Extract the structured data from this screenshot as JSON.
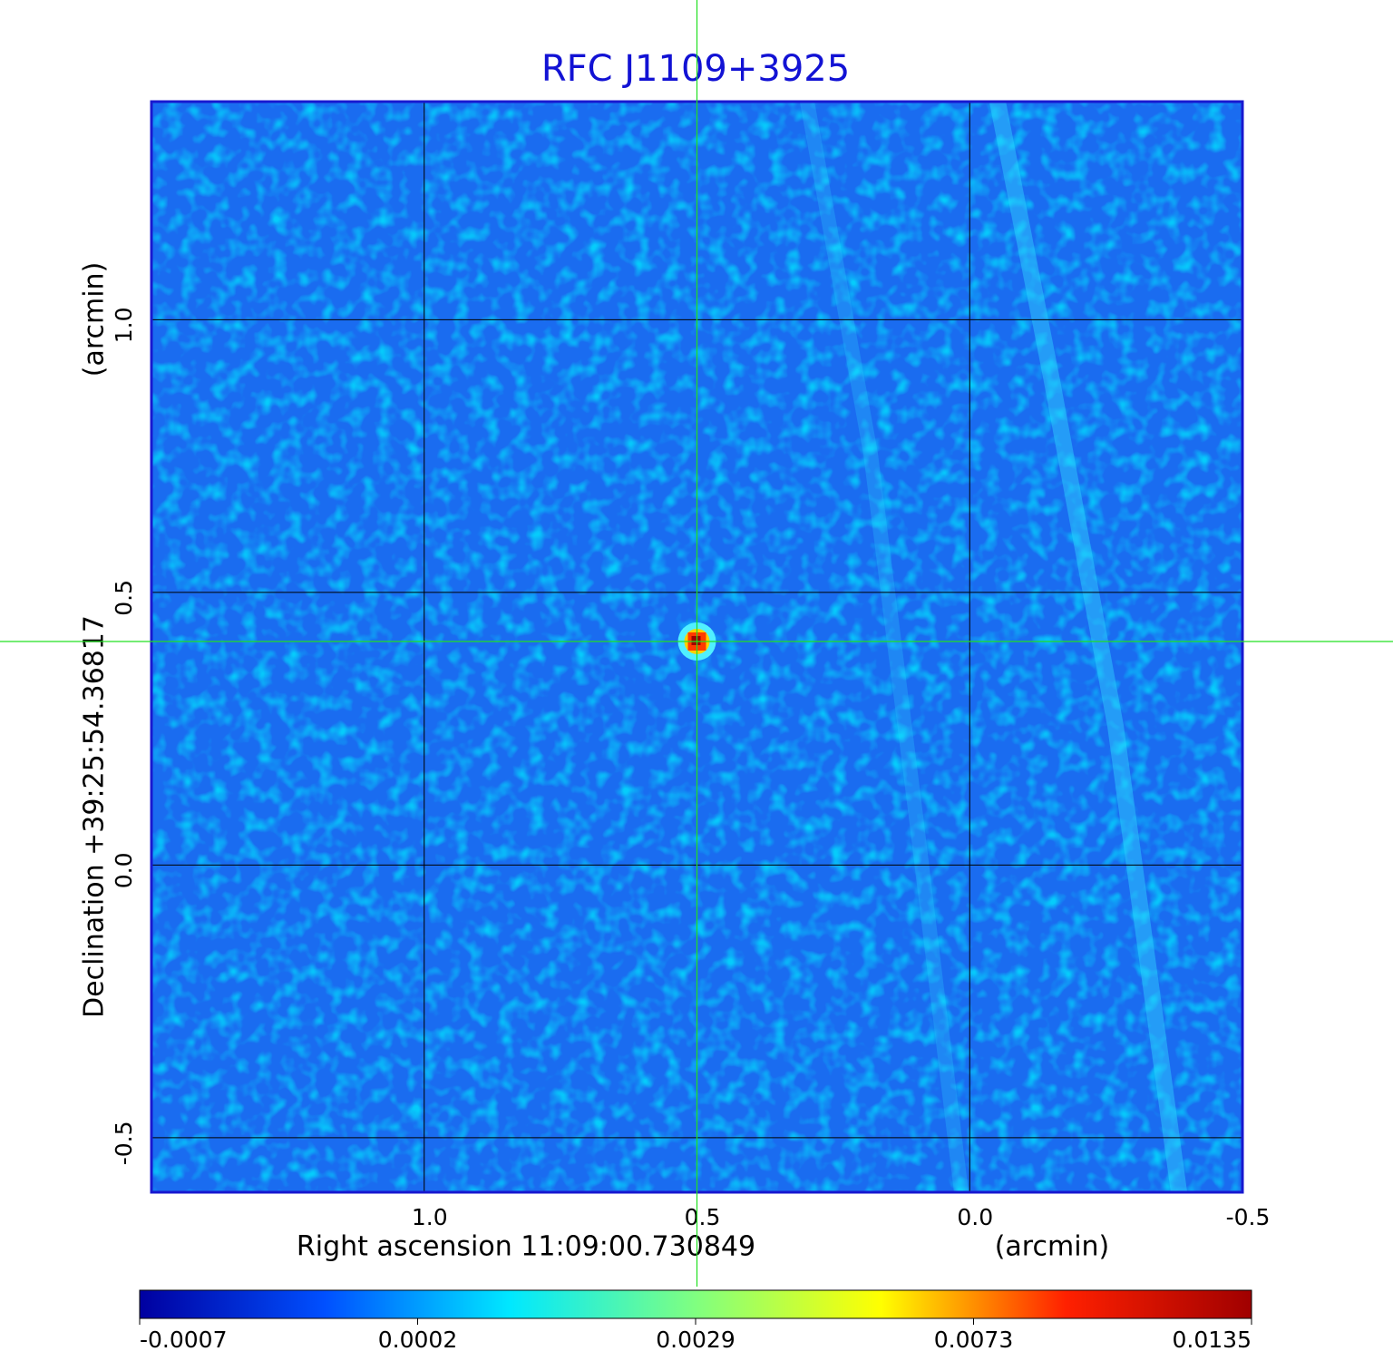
{
  "chart_data": {
    "type": "image",
    "title": "RFC J1109+3925",
    "xlabel": "Right ascension  11:09:00.730849",
    "xunit": "(arcmin)",
    "ylabel": "Declination  +39:25:54.36817",
    "yunit": "(arcmin)",
    "xlim": [
      1.5,
      -0.5
    ],
    "ylim": [
      -0.6,
      1.4
    ],
    "xticks": [
      {
        "value": 1,
        "label": "1.0"
      },
      0.5,
      {
        "value": 0,
        "label": "0.0"
      },
      -0.5
    ],
    "yticks": [
      -0.5,
      {
        "value": 0,
        "label": "0.0"
      },
      0.5,
      {
        "value": 1,
        "label": "1.0"
      }
    ],
    "grid": true,
    "source": {
      "x": 0.5,
      "y": 0.41
    },
    "colorbar": {
      "ticks": [
        -0.0007,
        0.0002,
        0.0029,
        0.0073,
        0.0135
      ],
      "colors": [
        "#0000a0",
        "#0050ff",
        "#00e8ff",
        "#80ff80",
        "#ffff00",
        "#ff2000",
        "#a00000"
      ]
    }
  }
}
